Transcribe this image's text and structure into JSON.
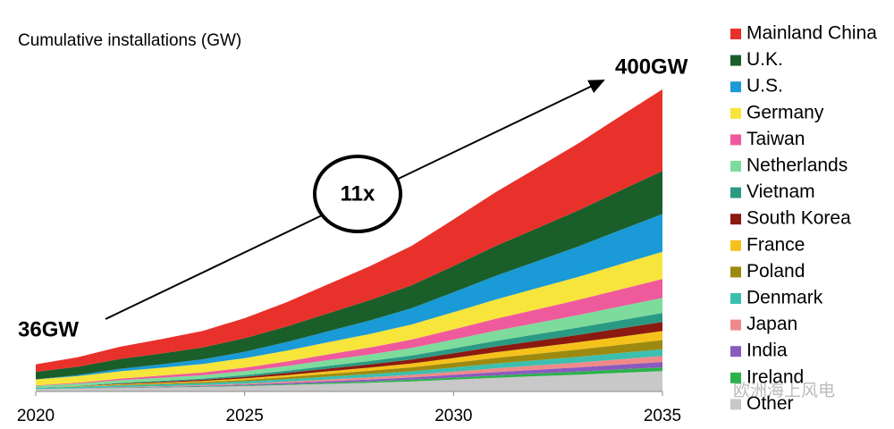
{
  "chart_data": {
    "type": "stacked-area",
    "title": "Cumulative installations (GW)",
    "annotations": {
      "start": "36GW",
      "end": "400GW",
      "growth": "11x"
    },
    "watermark": "欧洲海上风电",
    "x": [
      2020,
      2021,
      2022,
      2023,
      2024,
      2025,
      2026,
      2027,
      2028,
      2029,
      2030,
      2031,
      2032,
      2033,
      2034,
      2035
    ],
    "xlim": [
      2020,
      2035
    ],
    "xticks": [
      2020,
      2025,
      2030,
      2035
    ],
    "ylim": [
      0,
      400
    ],
    "series": [
      {
        "name": "Mainland China",
        "color": "#e8312a",
        "values": [
          10,
          12.5,
          16.2,
          18.9,
          21.9,
          26.5,
          32.1,
          38.5,
          45.0,
          52.2,
          61.6,
          71.3,
          80.0,
          88.9,
          98.6,
          108
        ]
      },
      {
        "name": "U.K.",
        "color": "#1a5e2a",
        "values": [
          10,
          11.2,
          13.0,
          14.3,
          15.7,
          17.9,
          20.6,
          23.7,
          26.8,
          30.3,
          34.8,
          39.4,
          43.6,
          47.8,
          52.5,
          57
        ]
      },
      {
        "name": "U.S.",
        "color": "#1a9ad6",
        "values": [
          0,
          1.3,
          3.2,
          4.6,
          6.1,
          8.4,
          11.3,
          14.6,
          17.9,
          21.6,
          26.4,
          31.3,
          35.7,
          40.3,
          45.2,
          50
        ]
      },
      {
        "name": "Germany",
        "color": "#f7e53b",
        "values": [
          8,
          8.7,
          9.8,
          10.5,
          11.4,
          12.7,
          14.3,
          16.1,
          18.0,
          20.1,
          22.8,
          25.5,
          28.0,
          30.5,
          33.3,
          36
        ]
      },
      {
        "name": "Taiwan",
        "color": "#ef5a9d",
        "values": [
          0.5,
          1.1,
          2.0,
          2.7,
          3.5,
          4.6,
          6.0,
          7.6,
          9.2,
          11.1,
          13.4,
          15.8,
          18.0,
          20.2,
          22.6,
          25
        ]
      },
      {
        "name": "Netherlands",
        "color": "#7ddc9b",
        "values": [
          2.5,
          2.9,
          3.6,
          4.1,
          4.6,
          5.4,
          6.4,
          7.6,
          8.7,
          10.0,
          11.7,
          13.5,
          15.0,
          16.6,
          18.3,
          20
        ]
      },
      {
        "name": "Vietnam",
        "color": "#2a9a84",
        "values": [
          0.1,
          0.4,
          0.8,
          1.2,
          1.5,
          2.1,
          2.8,
          3.6,
          4.3,
          5.2,
          6.4,
          7.5,
          8.6,
          9.7,
          10.9,
          12
        ]
      },
      {
        "name": "South Korea",
        "color": "#8b1a10",
        "values": [
          0.1,
          0.4,
          0.8,
          1.2,
          1.5,
          2.1,
          2.8,
          3.6,
          4.3,
          5.2,
          6.4,
          7.5,
          8.6,
          9.7,
          10.9,
          12
        ]
      },
      {
        "name": "France",
        "color": "#f5c21b",
        "values": [
          0,
          0.3,
          0.8,
          1.1,
          1.5,
          2.0,
          2.7,
          3.5,
          4.3,
          5.2,
          6.3,
          7.5,
          8.6,
          9.7,
          10.8,
          12
        ]
      },
      {
        "name": "Poland",
        "color": "#9c8a10",
        "values": [
          0,
          0.3,
          0.8,
          1.1,
          1.5,
          2.0,
          2.7,
          3.5,
          4.3,
          5.2,
          6.3,
          7.5,
          8.6,
          9.7,
          10.8,
          12
        ]
      },
      {
        "name": "Denmark",
        "color": "#3cbfae",
        "values": [
          1.7,
          1.9,
          2.2,
          2.4,
          2.6,
          2.9,
          3.3,
          3.8,
          4.3,
          4.8,
          5.5,
          6.3,
          6.9,
          7.6,
          8.3,
          9
        ]
      },
      {
        "name": "Japan",
        "color": "#f08a8a",
        "values": [
          0,
          0.2,
          0.5,
          0.7,
          1.0,
          1.3,
          1.8,
          2.3,
          2.9,
          3.4,
          4.2,
          5.0,
          5.7,
          6.4,
          7.2,
          8
        ]
      },
      {
        "name": "India",
        "color": "#8a5bbf",
        "values": [
          0,
          0.2,
          0.4,
          0.6,
          0.8,
          1.2,
          1.6,
          2.0,
          2.5,
          3.0,
          3.7,
          4.4,
          5.0,
          5.6,
          6.3,
          7
        ]
      },
      {
        "name": "Ireland",
        "color": "#2cb24a",
        "values": [
          0,
          0.1,
          0.3,
          0.5,
          0.6,
          0.8,
          1.1,
          1.5,
          1.8,
          2.2,
          2.6,
          3.1,
          3.6,
          4.0,
          4.5,
          5
        ]
      },
      {
        "name": "Other",
        "color": "#c8c8c8",
        "values": [
          3.1,
          3.7,
          4.6,
          5.3,
          6.0,
          7.1,
          8.5,
          10.1,
          11.6,
          13.4,
          15.7,
          18.1,
          20.2,
          22.3,
          24.7,
          27
        ]
      }
    ]
  }
}
